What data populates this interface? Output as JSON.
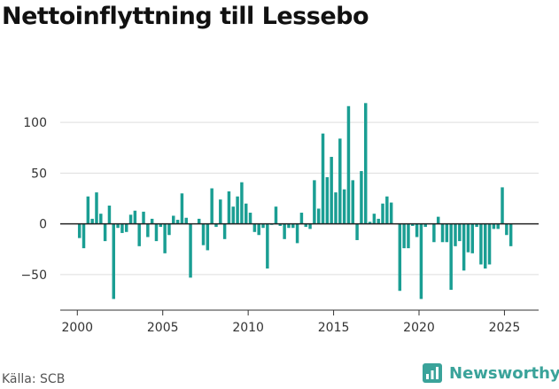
{
  "title": "Nettoinflyttning till Lessebo",
  "source": "Källa: SCB",
  "brand": {
    "name": "Newsworthy",
    "icon": "newsworthy-logo-icon",
    "color": "#3aa39a"
  },
  "colors": {
    "bar": "#1a9e93",
    "grid": "#dddddd",
    "zero_line": "#222222"
  },
  "chart_data": {
    "type": "bar",
    "x_kind": "quarterly",
    "xlim": [
      1999,
      2027
    ],
    "ylim": [
      -85,
      135
    ],
    "x_ticks": [
      {
        "value": 2000,
        "label": "2000"
      },
      {
        "value": 2005,
        "label": "2005"
      },
      {
        "value": 2010,
        "label": "2010"
      },
      {
        "value": 2015,
        "label": "2015"
      },
      {
        "value": 2020,
        "label": "2020"
      },
      {
        "value": 2025,
        "label": "2025"
      }
    ],
    "y_ticks": [
      {
        "value": 100,
        "label": "100"
      },
      {
        "value": 50,
        "label": "50"
      },
      {
        "value": 0,
        "label": "0"
      },
      {
        "value": -50,
        "label": "−50"
      }
    ],
    "grid": true,
    "legend": false,
    "x": [
      2000.125,
      2000.375,
      2000.625,
      2000.875,
      2001.125,
      2001.375,
      2001.625,
      2001.875,
      2002.125,
      2002.375,
      2002.625,
      2002.875,
      2003.125,
      2003.375,
      2003.625,
      2003.875,
      2004.125,
      2004.375,
      2004.625,
      2004.875,
      2005.125,
      2005.375,
      2005.625,
      2005.875,
      2006.125,
      2006.375,
      2006.625,
      2006.875,
      2007.125,
      2007.375,
      2007.625,
      2007.875,
      2008.125,
      2008.375,
      2008.625,
      2008.875,
      2009.125,
      2009.375,
      2009.625,
      2009.875,
      2010.125,
      2010.375,
      2010.625,
      2010.875,
      2011.125,
      2011.375,
      2011.625,
      2011.875,
      2012.125,
      2012.375,
      2012.625,
      2012.875,
      2013.125,
      2013.375,
      2013.625,
      2013.875,
      2014.125,
      2014.375,
      2014.625,
      2014.875,
      2015.125,
      2015.375,
      2015.625,
      2015.875,
      2016.125,
      2016.375,
      2016.625,
      2016.875,
      2017.125,
      2017.375,
      2017.625,
      2017.875,
      2018.125,
      2018.375,
      2018.625,
      2018.875,
      2019.125,
      2019.375,
      2019.625,
      2019.875,
      2020.125,
      2020.375,
      2020.625,
      2020.875,
      2021.125,
      2021.375,
      2021.625,
      2021.875,
      2022.125,
      2022.375,
      2022.625,
      2022.875,
      2023.125,
      2023.375,
      2023.625,
      2023.875,
      2024.125,
      2024.375,
      2024.625,
      2024.875,
      2025.125,
      2025.375
    ],
    "values": [
      -14,
      -24,
      27,
      5,
      31,
      10,
      -17,
      18,
      -74,
      -4,
      -9,
      -8,
      9,
      13,
      -22,
      12,
      -13,
      5,
      -17,
      -3,
      -29,
      -11,
      8,
      4,
      30,
      6,
      -53,
      0,
      5,
      -21,
      -26,
      35,
      -3,
      24,
      -15,
      32,
      17,
      27,
      41,
      20,
      11,
      -8,
      -11,
      -4,
      -44,
      -1,
      17,
      -2,
      -15,
      -4,
      -4,
      -19,
      11,
      -3,
      -5,
      43,
      15,
      89,
      46,
      66,
      31,
      84,
      34,
      116,
      43,
      -16,
      52,
      119,
      2,
      10,
      5,
      20,
      27,
      21,
      0,
      -66,
      -24,
      -24,
      -2,
      -13,
      -74,
      -3,
      0,
      -18,
      7,
      -18,
      -18,
      -65,
      -22,
      -17,
      -46,
      -28,
      -29,
      -3,
      -40,
      -44,
      -40,
      -5,
      -5,
      36,
      -11,
      -22
    ]
  }
}
